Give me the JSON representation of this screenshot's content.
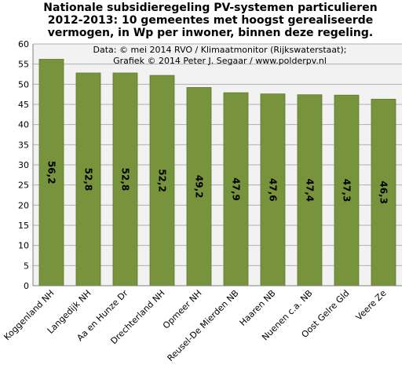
{
  "chart_data": {
    "type": "bar",
    "title": [
      "Nationale subsidieregeling PV-systemen particulieren",
      "2012-2013: 10 gemeentes met hoogst gerealiseerde",
      "vermogen, in Wp per inwoner, binnen deze regeling."
    ],
    "source": [
      "Data: © mei 2014 RVO / Klimaatmonitor (Rijkswaterstaat);",
      "Grafiek © 2014 Peter J. Segaar / www.polderpv.nl"
    ],
    "categories": [
      "Koggenland NH",
      "Langedijk NH",
      "Aa en Hunze Dr",
      "Drechterland NH",
      "Opmeer NH",
      "Reusel-De Mierden NB",
      "Haaren NB",
      "Nuenen c.a. NB",
      "Oost Gelre Gld",
      "Veere Ze"
    ],
    "values": [
      56.2,
      52.8,
      52.8,
      52.2,
      49.2,
      47.9,
      47.6,
      47.4,
      47.3,
      46.3
    ],
    "value_labels": [
      "56,2",
      "52,8",
      "52,8",
      "52,2",
      "49,2",
      "47,9",
      "47,6",
      "47,4",
      "47,3",
      "46,3"
    ],
    "xlabel": "",
    "ylabel": "",
    "ylim": [
      0,
      60
    ],
    "yticks": [
      0,
      5,
      10,
      15,
      20,
      25,
      30,
      35,
      40,
      45,
      50,
      55,
      60
    ],
    "grid": true,
    "legend": "none",
    "colors": {
      "bar": "#77933c",
      "bar_edge": "#5f7a2c",
      "plot_background": "#f2f2f2",
      "grid": "#b0b0b0",
      "axis": "#808080"
    }
  }
}
